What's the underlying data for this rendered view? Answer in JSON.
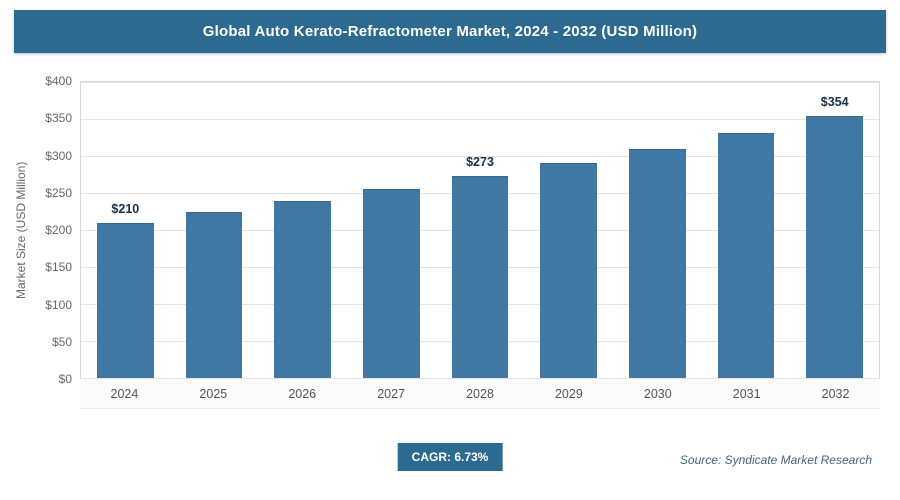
{
  "colors": {
    "accent": "#2c6a8f",
    "bar": "#4177a3",
    "value_label": "#16324a"
  },
  "chart_data": {
    "type": "bar",
    "title": "Global Auto Kerato-Refractometer Market, 2024 - 2032 (USD Million)",
    "categories": [
      "2024",
      "2025",
      "2026",
      "2027",
      "2028",
      "2029",
      "2030",
      "2031",
      "2032"
    ],
    "values": [
      210,
      224,
      239,
      255,
      273,
      291,
      310,
      331,
      354
    ],
    "value_labels": {
      "0": "$210",
      "4": "$273",
      "8": "$354"
    },
    "xlabel": "",
    "ylabel": "Market Size (USD Million)",
    "ylim": [
      0,
      400
    ],
    "ytick_step": 50,
    "ytick_prefix": "$",
    "grid": true,
    "legend": false,
    "legend_position": "none"
  },
  "footer": {
    "cagr": "CAGR: 6.73%",
    "source": "Source: Syndicate Market Research"
  }
}
